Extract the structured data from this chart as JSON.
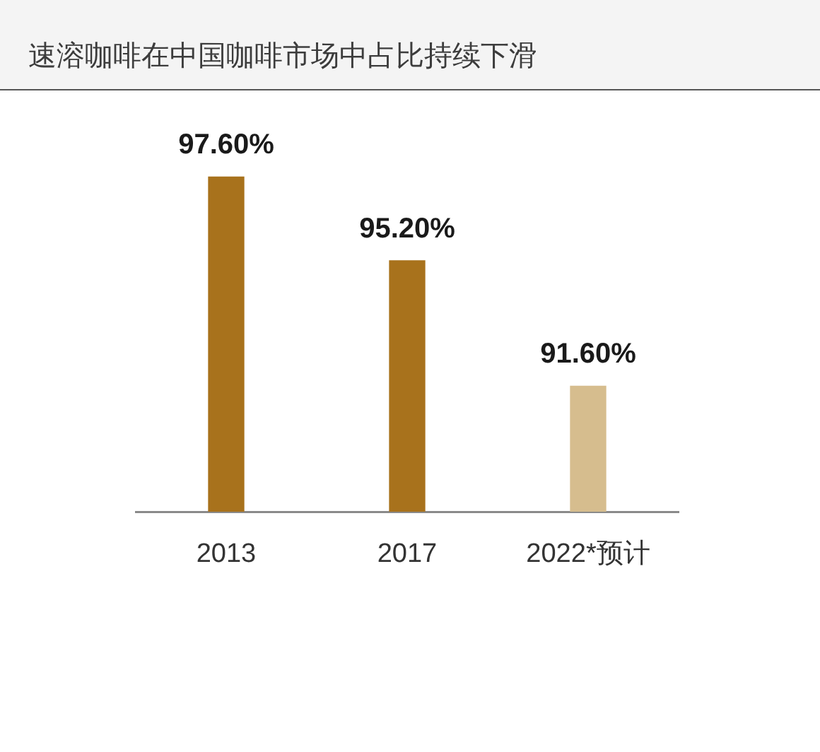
{
  "chart_data": {
    "type": "bar",
    "title": "速溶咖啡在中国咖啡市场中占比持续下滑",
    "categories": [
      "2013",
      "2017",
      "2022*预计"
    ],
    "values": [
      97.6,
      95.2,
      91.6
    ],
    "colors": [
      "#a8721c",
      "#a8721c",
      "#d6bd8e"
    ],
    "value_labels": [
      "97.60%",
      "95.20%",
      "91.60%"
    ],
    "ylim": [
      88,
      100
    ],
    "tick_labels": "x",
    "grid": false,
    "legend": false
  }
}
